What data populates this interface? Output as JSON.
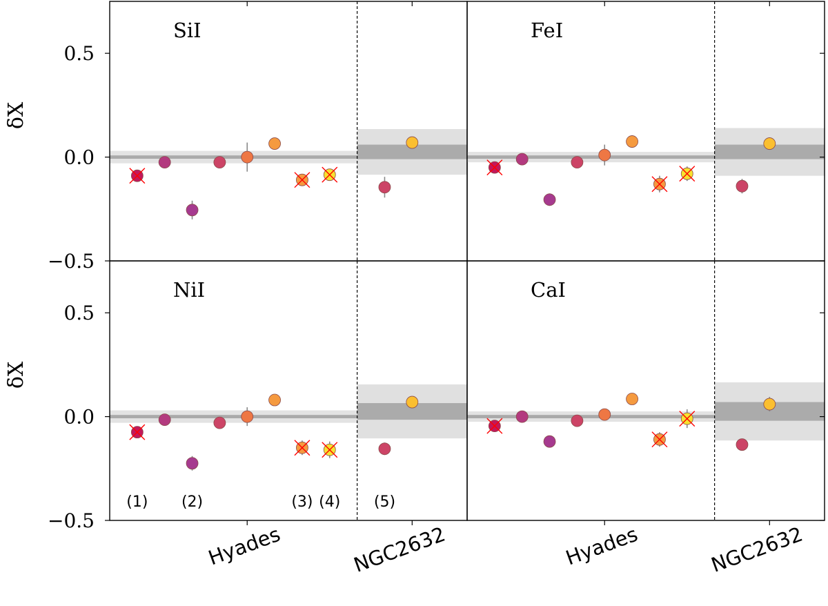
{
  "chart_data": {
    "type": "scatter",
    "ylabel": "δX",
    "ylim": [
      -0.5,
      0.75
    ],
    "yticks": [
      {
        "value": 0.5,
        "label": "0.5"
      },
      {
        "value": 0.0,
        "label": "0.0"
      },
      {
        "value": -0.5,
        "label": "−0.5"
      }
    ],
    "x_categories": [
      {
        "label": "Hyades",
        "x": 5
      },
      {
        "label": "NGC2632",
        "x": 11
      }
    ],
    "separator_x": 9,
    "star_labels": [
      {
        "label": "(1)",
        "x": 1
      },
      {
        "label": "(2)",
        "x": 3
      },
      {
        "label": "(3)",
        "x": 7
      },
      {
        "label": "(4)",
        "x": 8
      },
      {
        "label": "(5)",
        "x": 10
      }
    ],
    "panels": [
      {
        "element": "SiI",
        "hyades_band": {
          "center": 0.0,
          "inner": 0.008,
          "outer": 0.03
        },
        "ngc_band": {
          "center": 0.025,
          "inner": 0.035,
          "outer": 0.11
        },
        "points": [
          {
            "x": 1,
            "y": -0.09,
            "err": 0.015,
            "color": "#c2185b",
            "flagged": true
          },
          {
            "x": 2,
            "y": -0.025,
            "err": 0.01,
            "color": "#b33a7f",
            "flagged": false
          },
          {
            "x": 3,
            "y": -0.255,
            "err": 0.045,
            "color": "#a63a8f",
            "flagged": false
          },
          {
            "x": 4,
            "y": -0.025,
            "err": 0.01,
            "color": "#cc4466",
            "flagged": false
          },
          {
            "x": 5,
            "y": 0.0,
            "err": 0.07,
            "color": "#ee7744",
            "flagged": false
          },
          {
            "x": 6,
            "y": 0.065,
            "err": 0.01,
            "color": "#f59a3f",
            "flagged": false
          },
          {
            "x": 7,
            "y": -0.11,
            "err": 0.02,
            "color": "#f59a3f",
            "flagged": true
          },
          {
            "x": 8,
            "y": -0.085,
            "err": 0.025,
            "color": "#f7e230",
            "flagged": true
          },
          {
            "x": 10,
            "y": -0.145,
            "err": 0.05,
            "color": "#cc4466",
            "flagged": false
          },
          {
            "x": 11,
            "y": 0.07,
            "err": 0.02,
            "color": "#fbbf30",
            "flagged": false
          }
        ]
      },
      {
        "element": "FeI",
        "hyades_band": {
          "center": 0.0,
          "inner": 0.008,
          "outer": 0.025
        },
        "ngc_band": {
          "center": 0.025,
          "inner": 0.035,
          "outer": 0.115
        },
        "points": [
          {
            "x": 1,
            "y": -0.05,
            "err": 0.02,
            "color": "#c2185b",
            "flagged": true
          },
          {
            "x": 2,
            "y": -0.01,
            "err": 0.01,
            "color": "#b33a7f",
            "flagged": false
          },
          {
            "x": 3,
            "y": -0.205,
            "err": 0.03,
            "color": "#a63a8f",
            "flagged": false
          },
          {
            "x": 4,
            "y": -0.025,
            "err": 0.01,
            "color": "#cc4466",
            "flagged": false
          },
          {
            "x": 5,
            "y": 0.01,
            "err": 0.05,
            "color": "#ee7744",
            "flagged": false
          },
          {
            "x": 6,
            "y": 0.075,
            "err": 0.03,
            "color": "#f59a3f",
            "flagged": false
          },
          {
            "x": 7,
            "y": -0.13,
            "err": 0.04,
            "color": "#f59a3f",
            "flagged": true
          },
          {
            "x": 8,
            "y": -0.08,
            "err": 0.035,
            "color": "#f7e230",
            "flagged": true
          },
          {
            "x": 10,
            "y": -0.14,
            "err": 0.035,
            "color": "#cc4466",
            "flagged": false
          },
          {
            "x": 11,
            "y": 0.065,
            "err": 0.03,
            "color": "#fbbf30",
            "flagged": false
          }
        ]
      },
      {
        "element": "NiI",
        "hyades_band": {
          "center": 0.0,
          "inner": 0.008,
          "outer": 0.03
        },
        "ngc_band": {
          "center": 0.025,
          "inner": 0.04,
          "outer": 0.13
        },
        "points": [
          {
            "x": 1,
            "y": -0.075,
            "err": 0.015,
            "color": "#c2185b",
            "flagged": true
          },
          {
            "x": 2,
            "y": -0.015,
            "err": 0.01,
            "color": "#b33a7f",
            "flagged": false
          },
          {
            "x": 3,
            "y": -0.225,
            "err": 0.035,
            "color": "#a63a8f",
            "flagged": false
          },
          {
            "x": 4,
            "y": -0.03,
            "err": 0.01,
            "color": "#cc4466",
            "flagged": false
          },
          {
            "x": 5,
            "y": 0.0,
            "err": 0.045,
            "color": "#ee7744",
            "flagged": false
          },
          {
            "x": 6,
            "y": 0.08,
            "err": 0.01,
            "color": "#f59a3f",
            "flagged": false
          },
          {
            "x": 7,
            "y": -0.15,
            "err": 0.035,
            "color": "#f59a3f",
            "flagged": true
          },
          {
            "x": 8,
            "y": -0.16,
            "err": 0.04,
            "color": "#f7e230",
            "flagged": true
          },
          {
            "x": 10,
            "y": -0.155,
            "err": 0.03,
            "color": "#cc4466",
            "flagged": false
          },
          {
            "x": 11,
            "y": 0.07,
            "err": 0.02,
            "color": "#fbbf30",
            "flagged": false
          }
        ]
      },
      {
        "element": "CaI",
        "hyades_band": {
          "center": 0.0,
          "inner": 0.008,
          "outer": 0.025
        },
        "ngc_band": {
          "center": 0.025,
          "inner": 0.045,
          "outer": 0.14
        },
        "points": [
          {
            "x": 1,
            "y": -0.045,
            "err": 0.015,
            "color": "#c2185b",
            "flagged": true
          },
          {
            "x": 2,
            "y": 0.0,
            "err": 0.01,
            "color": "#b33a7f",
            "flagged": false
          },
          {
            "x": 3,
            "y": -0.12,
            "err": 0.01,
            "color": "#a63a8f",
            "flagged": false
          },
          {
            "x": 4,
            "y": -0.02,
            "err": 0.01,
            "color": "#cc4466",
            "flagged": false
          },
          {
            "x": 5,
            "y": 0.01,
            "err": 0.015,
            "color": "#ee7744",
            "flagged": false
          },
          {
            "x": 6,
            "y": 0.085,
            "err": 0.015,
            "color": "#f59a3f",
            "flagged": false
          },
          {
            "x": 7,
            "y": -0.11,
            "err": 0.035,
            "color": "#f59a3f",
            "flagged": true
          },
          {
            "x": 8,
            "y": -0.01,
            "err": 0.045,
            "color": "#f7e230",
            "flagged": true
          },
          {
            "x": 10,
            "y": -0.135,
            "err": 0.01,
            "color": "#cc4466",
            "flagged": false
          },
          {
            "x": 11,
            "y": 0.06,
            "err": 0.035,
            "color": "#fbbf30",
            "flagged": false
          }
        ]
      }
    ]
  }
}
